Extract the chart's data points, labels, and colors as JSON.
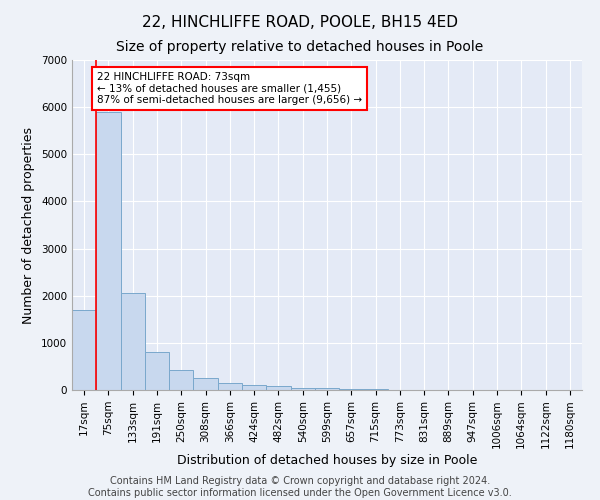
{
  "title": "22, HINCHLIFFE ROAD, POOLE, BH15 4ED",
  "subtitle": "Size of property relative to detached houses in Poole",
  "xlabel": "Distribution of detached houses by size in Poole",
  "ylabel": "Number of detached properties",
  "bin_labels": [
    "17sqm",
    "75sqm",
    "133sqm",
    "191sqm",
    "250sqm",
    "308sqm",
    "366sqm",
    "424sqm",
    "482sqm",
    "540sqm",
    "599sqm",
    "657sqm",
    "715sqm",
    "773sqm",
    "831sqm",
    "889sqm",
    "947sqm",
    "1006sqm",
    "1064sqm",
    "1122sqm",
    "1180sqm"
  ],
  "bar_values": [
    1700,
    5900,
    2050,
    800,
    420,
    260,
    150,
    105,
    75,
    50,
    40,
    25,
    18,
    8,
    5,
    3,
    2,
    1,
    1,
    0,
    0
  ],
  "bar_color": "#c8d8ee",
  "bar_edge_color": "#7aa8cc",
  "annotation_text": "22 HINCHLIFFE ROAD: 73sqm\n← 13% of detached houses are smaller (1,455)\n87% of semi-detached houses are larger (9,656) →",
  "annotation_box_color": "white",
  "annotation_box_edge_color": "red",
  "line_color": "red",
  "ylim": [
    0,
    7000
  ],
  "yticks": [
    0,
    1000,
    2000,
    3000,
    4000,
    5000,
    6000,
    7000
  ],
  "footer_line1": "Contains HM Land Registry data © Crown copyright and database right 2024.",
  "footer_line2": "Contains public sector information licensed under the Open Government Licence v3.0.",
  "background_color": "#eef2f8",
  "plot_bg_color": "#e4eaf6",
  "grid_color": "white",
  "title_fontsize": 11,
  "subtitle_fontsize": 10,
  "axis_label_fontsize": 9,
  "tick_fontsize": 7.5,
  "annotation_fontsize": 7.5,
  "footer_fontsize": 7
}
